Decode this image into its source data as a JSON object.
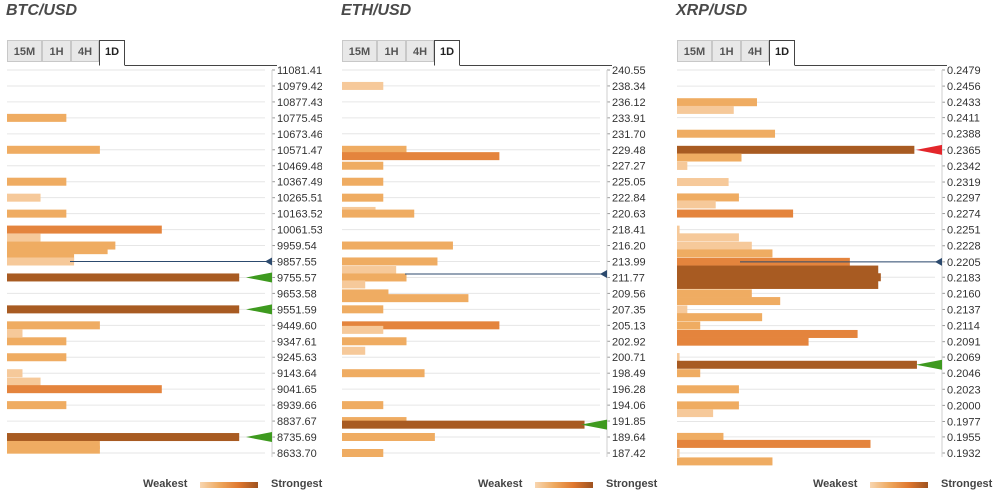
{
  "legend": {
    "weakest": "Weakest",
    "strongest": "Strongest"
  },
  "tabs": [
    "15M",
    "1H",
    "4H",
    "1D"
  ],
  "active_tab": "1D",
  "colors": {
    "weak": "#f6c99a",
    "light": "#efac62",
    "medium": "#e4843d",
    "strong": "#a85b22",
    "arrow_up": "#3e9a1f",
    "arrow_down": "#e3262b",
    "marker_line": "#2c4a6e"
  },
  "chart_data": [
    {
      "type": "bar",
      "title": "BTC/USD",
      "orientation": "horizontal",
      "levels": [
        "11081.41",
        "10979.42",
        "10877.43",
        "10775.45",
        "10673.46",
        "10571.47",
        "10469.48",
        "10367.49",
        "10265.51",
        "10163.52",
        "10061.53",
        "9959.54",
        "9857.55",
        "9755.57",
        "9653.58",
        "9551.59",
        "9449.60",
        "9347.61",
        "9245.63",
        "9143.64",
        "9041.65",
        "8939.66",
        "8837.67",
        "8735.69",
        "8633.70"
      ],
      "ylim": [
        8633.7,
        11081.41
      ],
      "current_price": 9857.55,
      "bars": [
        {
          "price": 10775.45,
          "strength": 0.23,
          "color": "light"
        },
        {
          "price": 10571.47,
          "strength": 0.36,
          "color": "light"
        },
        {
          "price": 10367.49,
          "strength": 0.23,
          "color": "light"
        },
        {
          "price": 10265.51,
          "strength": 0.13,
          "color": "weak"
        },
        {
          "price": 10163.52,
          "strength": 0.23,
          "color": "light"
        },
        {
          "price": 10061.53,
          "strength": 0.6,
          "color": "medium"
        },
        {
          "price": 10010.0,
          "strength": 0.13,
          "color": "weak"
        },
        {
          "price": 9959.54,
          "strength": 0.42,
          "color": "light"
        },
        {
          "price": 9930.0,
          "strength": 0.39,
          "color": "light"
        },
        {
          "price": 9890.0,
          "strength": 0.26,
          "color": "light"
        },
        {
          "price": 9857.55,
          "strength": 0.26,
          "color": "weak"
        },
        {
          "price": 9755.57,
          "strength": 0.9,
          "color": "strong"
        },
        {
          "price": 9551.59,
          "strength": 0.9,
          "color": "strong"
        },
        {
          "price": 9449.6,
          "strength": 0.36,
          "color": "light"
        },
        {
          "price": 9400.0,
          "strength": 0.06,
          "color": "weak"
        },
        {
          "price": 9347.61,
          "strength": 0.23,
          "color": "light"
        },
        {
          "price": 9245.63,
          "strength": 0.23,
          "color": "light"
        },
        {
          "price": 9143.64,
          "strength": 0.06,
          "color": "weak"
        },
        {
          "price": 9090.0,
          "strength": 0.13,
          "color": "weak"
        },
        {
          "price": 9041.65,
          "strength": 0.6,
          "color": "medium"
        },
        {
          "price": 8939.66,
          "strength": 0.23,
          "color": "light"
        },
        {
          "price": 8735.69,
          "strength": 0.9,
          "color": "strong"
        },
        {
          "price": 8685.0,
          "strength": 0.36,
          "color": "light"
        },
        {
          "price": 8655.0,
          "strength": 0.36,
          "color": "light"
        }
      ],
      "arrows": [
        {
          "price": 9755.57,
          "direction": "up"
        },
        {
          "price": 9551.59,
          "direction": "up"
        },
        {
          "price": 8735.69,
          "direction": "up"
        }
      ]
    },
    {
      "type": "bar",
      "title": "ETH/USD",
      "orientation": "horizontal",
      "levels": [
        "240.55",
        "238.34",
        "236.12",
        "233.91",
        "231.70",
        "229.48",
        "227.27",
        "225.05",
        "222.84",
        "220.63",
        "218.41",
        "216.20",
        "213.99",
        "211.77",
        "209.56",
        "207.35",
        "205.13",
        "202.92",
        "200.71",
        "198.49",
        "196.28",
        "194.06",
        "191.85",
        "189.64",
        "187.42"
      ],
      "ylim": [
        187.42,
        240.55
      ],
      "current_price": 212.25,
      "bars": [
        {
          "price": 238.34,
          "strength": 0.16,
          "color": "weak"
        },
        {
          "price": 229.48,
          "strength": 0.25,
          "color": "light"
        },
        {
          "price": 228.6,
          "strength": 0.61,
          "color": "medium"
        },
        {
          "price": 227.27,
          "strength": 0.16,
          "color": "light"
        },
        {
          "price": 225.05,
          "strength": 0.16,
          "color": "light"
        },
        {
          "price": 222.84,
          "strength": 0.16,
          "color": "light"
        },
        {
          "price": 221.0,
          "strength": 0.13,
          "color": "weak"
        },
        {
          "price": 220.63,
          "strength": 0.28,
          "color": "light"
        },
        {
          "price": 216.2,
          "strength": 0.43,
          "color": "light"
        },
        {
          "price": 213.99,
          "strength": 0.37,
          "color": "light"
        },
        {
          "price": 212.8,
          "strength": 0.21,
          "color": "weak"
        },
        {
          "price": 211.77,
          "strength": 0.25,
          "color": "light"
        },
        {
          "price": 210.8,
          "strength": 0.09,
          "color": "weak"
        },
        {
          "price": 209.56,
          "strength": 0.18,
          "color": "light"
        },
        {
          "price": 208.9,
          "strength": 0.49,
          "color": "light"
        },
        {
          "price": 207.35,
          "strength": 0.16,
          "color": "light"
        },
        {
          "price": 205.13,
          "strength": 0.61,
          "color": "medium"
        },
        {
          "price": 204.5,
          "strength": 0.16,
          "color": "weak"
        },
        {
          "price": 202.92,
          "strength": 0.25,
          "color": "light"
        },
        {
          "price": 201.6,
          "strength": 0.09,
          "color": "weak"
        },
        {
          "price": 198.49,
          "strength": 0.32,
          "color": "light"
        },
        {
          "price": 194.06,
          "strength": 0.16,
          "color": "light"
        },
        {
          "price": 191.85,
          "strength": 0.25,
          "color": "light"
        },
        {
          "price": 191.35,
          "strength": 0.94,
          "color": "strong"
        },
        {
          "price": 189.64,
          "strength": 0.36,
          "color": "light"
        },
        {
          "price": 187.42,
          "strength": 0.16,
          "color": "light"
        }
      ],
      "arrows": [
        {
          "price": 191.35,
          "direction": "up"
        }
      ]
    },
    {
      "type": "bar",
      "title": "XRP/USD",
      "orientation": "horizontal",
      "levels": [
        "0.2479",
        "0.2456",
        "0.2433",
        "0.2411",
        "0.2388",
        "0.2365",
        "0.2342",
        "0.2319",
        "0.2297",
        "0.2274",
        "0.2251",
        "0.2228",
        "0.2205",
        "0.2183",
        "0.2160",
        "0.2137",
        "0.2114",
        "0.2091",
        "0.2069",
        "0.2046",
        "0.2023",
        "0.2000",
        "0.1977",
        "0.1955",
        "0.1932"
      ],
      "ylim": [
        0.1932,
        0.2479
      ],
      "current_price": 0.2205,
      "bars": [
        {
          "price": 0.2433,
          "strength": 0.31,
          "color": "light"
        },
        {
          "price": 0.2422,
          "strength": 0.22,
          "color": "weak"
        },
        {
          "price": 0.2388,
          "strength": 0.38,
          "color": "light"
        },
        {
          "price": 0.2365,
          "strength": 0.92,
          "color": "strong"
        },
        {
          "price": 0.2354,
          "strength": 0.25,
          "color": "light"
        },
        {
          "price": 0.2342,
          "strength": 0.04,
          "color": "weak"
        },
        {
          "price": 0.2319,
          "strength": 0.2,
          "color": "weak"
        },
        {
          "price": 0.2297,
          "strength": 0.24,
          "color": "light"
        },
        {
          "price": 0.2287,
          "strength": 0.15,
          "color": "weak"
        },
        {
          "price": 0.2274,
          "strength": 0.45,
          "color": "medium"
        },
        {
          "price": 0.2251,
          "strength": 0.01,
          "color": "weak"
        },
        {
          "price": 0.224,
          "strength": 0.24,
          "color": "weak"
        },
        {
          "price": 0.2228,
          "strength": 0.29,
          "color": "weak"
        },
        {
          "price": 0.2217,
          "strength": 0.37,
          "color": "light"
        },
        {
          "price": 0.2205,
          "strength": 0.67,
          "color": "medium"
        },
        {
          "price": 0.2194,
          "strength": 0.78,
          "color": "strong"
        },
        {
          "price": 0.2183,
          "strength": 0.79,
          "color": "strong"
        },
        {
          "price": 0.2172,
          "strength": 0.78,
          "color": "strong"
        },
        {
          "price": 0.216,
          "strength": 0.29,
          "color": "light"
        },
        {
          "price": 0.2149,
          "strength": 0.4,
          "color": "light"
        },
        {
          "price": 0.2137,
          "strength": 0.04,
          "color": "weak"
        },
        {
          "price": 0.2126,
          "strength": 0.33,
          "color": "light"
        },
        {
          "price": 0.2114,
          "strength": 0.09,
          "color": "light"
        },
        {
          "price": 0.2102,
          "strength": 0.7,
          "color": "medium"
        },
        {
          "price": 0.2091,
          "strength": 0.51,
          "color": "medium"
        },
        {
          "price": 0.2069,
          "strength": 0.01,
          "color": "weak"
        },
        {
          "price": 0.2058,
          "strength": 0.93,
          "color": "strong"
        },
        {
          "price": 0.2046,
          "strength": 0.09,
          "color": "light"
        },
        {
          "price": 0.2023,
          "strength": 0.24,
          "color": "light"
        },
        {
          "price": 0.2,
          "strength": 0.24,
          "color": "light"
        },
        {
          "price": 0.1989,
          "strength": 0.14,
          "color": "weak"
        },
        {
          "price": 0.1955,
          "strength": 0.18,
          "color": "light"
        },
        {
          "price": 0.1945,
          "strength": 0.75,
          "color": "medium"
        },
        {
          "price": 0.1932,
          "strength": 0.01,
          "color": "weak"
        },
        {
          "price": 0.192,
          "strength": 0.37,
          "color": "light"
        }
      ],
      "arrows": [
        {
          "price": 0.2365,
          "direction": "down"
        },
        {
          "price": 0.2058,
          "direction": "up"
        }
      ]
    }
  ]
}
